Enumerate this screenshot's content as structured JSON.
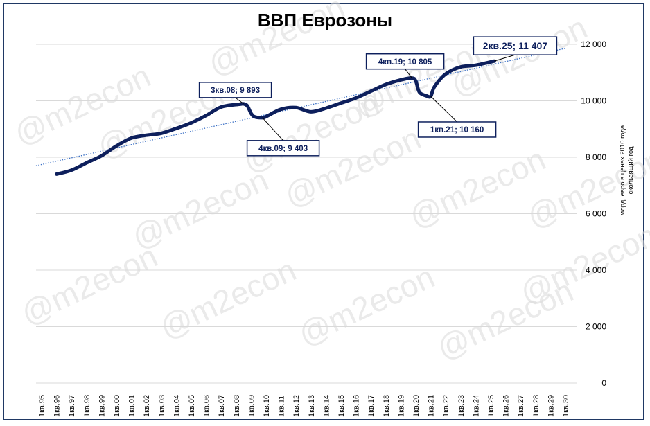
{
  "chart_data": {
    "type": "line",
    "title": "ВВП Еврозоны",
    "ylabel_line1": "млрд. евро в ценах 2010 года",
    "ylabel_line2": "скользящий год",
    "ylim": [
      0,
      12000
    ],
    "y_ticks": [
      0,
      2000,
      4000,
      6000,
      8000,
      10000,
      12000
    ],
    "y_tick_labels": [
      "0",
      "2 000",
      "4 000",
      "6 000",
      "8 000",
      "10 000",
      "12 000"
    ],
    "x_tick_labels": [
      "1кв.95",
      "1кв.96",
      "1кв.97",
      "1кв.98",
      "1кв.99",
      "1кв.00",
      "1кв.01",
      "1кв.02",
      "1кв.03",
      "1кв.04",
      "1кв.05",
      "1кв.06",
      "1кв.07",
      "1кв.08",
      "1кв.09",
      "1кв.10",
      "1кв.11",
      "1кв.12",
      "1кв.13",
      "1кв.14",
      "1кв.15",
      "1кв.16",
      "1кв.17",
      "1кв.18",
      "1кв.19",
      "1кв.20",
      "1кв.21",
      "1кв.22",
      "1кв.23",
      "1кв.24",
      "1кв.25",
      "1кв.26",
      "1кв.27",
      "1кв.28",
      "1кв.29",
      "1кв.30"
    ],
    "grid": "horizontal",
    "series": [
      {
        "color": "#0d1f5c",
        "points": [
          [
            "1кв.96",
            7400
          ],
          [
            "1кв.97",
            7540
          ],
          [
            "1кв.98",
            7800
          ],
          [
            "1кв.99",
            8050
          ],
          [
            "1кв.00",
            8400
          ],
          [
            "1кв.01",
            8680
          ],
          [
            "1кв.02",
            8780
          ],
          [
            "1кв.03",
            8850
          ],
          [
            "1кв.04",
            9020
          ],
          [
            "1кв.05",
            9220
          ],
          [
            "1кв.06",
            9480
          ],
          [
            "1кв.07",
            9780
          ],
          [
            "2кв.08",
            9880
          ],
          [
            "3кв.08",
            9893
          ],
          [
            "4кв.08",
            9820
          ],
          [
            "1кв.09",
            9550
          ],
          [
            "2кв.09",
            9430
          ],
          [
            "4кв.09",
            9403
          ],
          [
            "1кв.10",
            9440
          ],
          [
            "1кв.11",
            9700
          ],
          [
            "1кв.12",
            9760
          ],
          [
            "1кв.13",
            9610
          ],
          [
            "1кв.14",
            9740
          ],
          [
            "1кв.15",
            9920
          ],
          [
            "1кв.16",
            10100
          ],
          [
            "1кв.17",
            10340
          ],
          [
            "1кв.18",
            10580
          ],
          [
            "1кв.19",
            10740
          ],
          [
            "4кв.19",
            10805
          ],
          [
            "1кв.20",
            10700
          ],
          [
            "2кв.20",
            10300
          ],
          [
            "4кв.20",
            10170
          ],
          [
            "1кв.21",
            10160
          ],
          [
            "2кв.21",
            10500
          ],
          [
            "1кв.22",
            10950
          ],
          [
            "1кв.23",
            11200
          ],
          [
            "1кв.24",
            11260
          ],
          [
            "2кв.25",
            11407
          ]
        ]
      }
    ],
    "trendline": {
      "color": "#3a6fc4",
      "style": "dotted",
      "from": [
        "1кв.95",
        7700
      ],
      "to": [
        "1кв.30",
        11860
      ]
    },
    "annotations": [
      {
        "label": "3кв.08; 9 893",
        "x": "3кв.08",
        "y": 9893
      },
      {
        "label": "4кв.09; 9 403",
        "x": "4кв.09",
        "y": 9403
      },
      {
        "label": "4кв.19; 10 805",
        "x": "4кв.19",
        "y": 10805
      },
      {
        "label": "1кв.21; 10 160",
        "x": "1кв.21",
        "y": 10160
      },
      {
        "label": "2кв.25; 11 407",
        "x": "2кв.25",
        "y": 11407
      }
    ],
    "watermark": "@m2econ"
  }
}
